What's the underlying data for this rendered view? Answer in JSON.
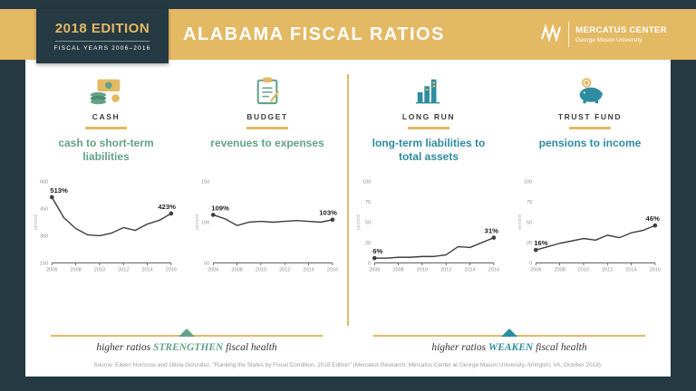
{
  "colors": {
    "frame": "#253942",
    "gold": "#E4B964",
    "green": "#63A287",
    "teal": "#2E8CA1",
    "line": "#3F3F3F"
  },
  "header": {
    "edition": "2018 EDITION",
    "fiscal_years": "FISCAL YEARS 2006–2016",
    "title": "ALABAMA FISCAL RATIOS",
    "logo_name": "MERCATUS CENTER",
    "logo_sub": "George Mason University"
  },
  "panels": [
    {
      "category": "CASH",
      "subtitle": "cash to short-term liabilities"
    },
    {
      "category": "BUDGET",
      "subtitle": "revenues to expenses"
    },
    {
      "category": "LONG RUN",
      "subtitle": "long-term liabilities to total assets"
    },
    {
      "category": "TRUST FUND",
      "subtitle": "pensions to income"
    }
  ],
  "chart_data": [
    {
      "type": "line",
      "title": "cash to short-term liabilities",
      "ylabel": "percent",
      "x": [
        2006,
        2007,
        2008,
        2009,
        2010,
        2011,
        2012,
        2013,
        2014,
        2015,
        2016
      ],
      "values": [
        513,
        400,
        340,
        305,
        300,
        315,
        345,
        330,
        365,
        385,
        423
      ],
      "ylim": [
        150,
        600
      ],
      "yticks": [
        150,
        300,
        450,
        600
      ],
      "xticks": [
        2006,
        2008,
        2010,
        2012,
        2014,
        2016
      ],
      "start_label": "513%",
      "end_label": "423%"
    },
    {
      "type": "line",
      "title": "revenues to expenses",
      "ylabel": "percent",
      "x": [
        2006,
        2007,
        2008,
        2009,
        2010,
        2011,
        2012,
        2013,
        2014,
        2015,
        2016
      ],
      "values": [
        109,
        104,
        96,
        100,
        101,
        100,
        101,
        102,
        101,
        100,
        103
      ],
      "ylim": [
        50,
        150
      ],
      "yticks": [
        50,
        100,
        150
      ],
      "xticks": [
        2006,
        2008,
        2010,
        2012,
        2014,
        2016
      ],
      "start_label": "109%",
      "end_label": "103%"
    },
    {
      "type": "line",
      "title": "long-term liabilities to total assets",
      "ylabel": "percent",
      "x": [
        2006,
        2007,
        2008,
        2009,
        2010,
        2011,
        2012,
        2013,
        2014,
        2015,
        2016
      ],
      "values": [
        6,
        6,
        7,
        7,
        8,
        8,
        10,
        20,
        19,
        25,
        31
      ],
      "ylim": [
        0,
        100
      ],
      "yticks": [
        0,
        25,
        50,
        75,
        100
      ],
      "xticks": [
        2006,
        2008,
        2010,
        2012,
        2014,
        2016
      ],
      "start_label": "6%",
      "end_label": "31%"
    },
    {
      "type": "line",
      "title": "pensions to income",
      "ylabel": "percent",
      "x": [
        2006,
        2007,
        2008,
        2009,
        2010,
        2011,
        2012,
        2013,
        2014,
        2015,
        2016
      ],
      "values": [
        16,
        20,
        24,
        27,
        30,
        28,
        34,
        31,
        37,
        40,
        46
      ],
      "ylim": [
        0,
        100
      ],
      "yticks": [
        0,
        25,
        50,
        75,
        100
      ],
      "xticks": [
        2006,
        2008,
        2010,
        2012,
        2014,
        2016
      ],
      "start_label": "16%",
      "end_label": "46%"
    }
  ],
  "footnotes": {
    "left": {
      "pre": "higher ratios ",
      "keyword": "STRENGTHEN",
      "post": " fiscal health"
    },
    "right": {
      "pre": "higher ratios ",
      "keyword": "WEAKEN",
      "post": " fiscal health"
    }
  },
  "source": "Source: Eileen Norcross and Olivia Gonzalez, “Ranking the States by Fiscal Condition, 2018 Edition” (Mercatus Research, Mercatus Center at George Mason University, Arlington, VA, October 2018)."
}
